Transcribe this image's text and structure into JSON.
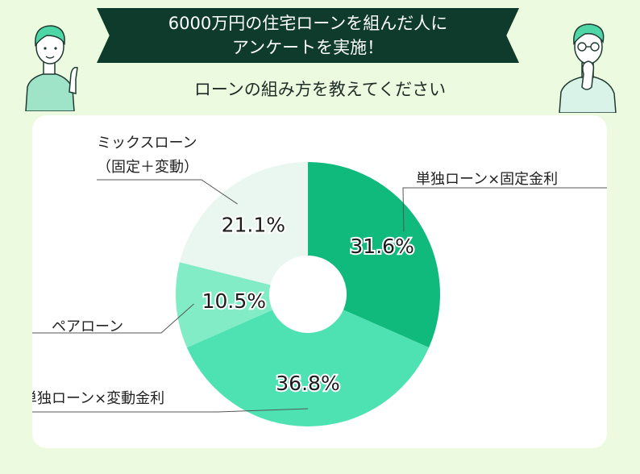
{
  "header": {
    "title_line1": "6000万円の住宅ローンを組んだ人に",
    "title_line2": "アンケートを実施！",
    "subtitle": "ローンの組み方を教えてください"
  },
  "chart_data": {
    "type": "pie",
    "style": "donut",
    "start_angle_deg": 0,
    "direction": "clockwise",
    "slices": [
      {
        "label": "単独ローン×固定金利",
        "value": 31.6,
        "value_label": "31.6%",
        "color": "#0fba7c"
      },
      {
        "label": "単独ローン×変動金利",
        "value": 36.8,
        "value_label": "36.8%",
        "color": "#4ee2b3"
      },
      {
        "label": "ペアローン",
        "value": 10.5,
        "value_label": "10.5%",
        "color": "#82ecc6"
      },
      {
        "label_lines": [
          "ミックスローン",
          "（固定＋変動）"
        ],
        "value": 21.1,
        "value_label": "21.1%",
        "color": "#eaf7f1"
      }
    ]
  }
}
